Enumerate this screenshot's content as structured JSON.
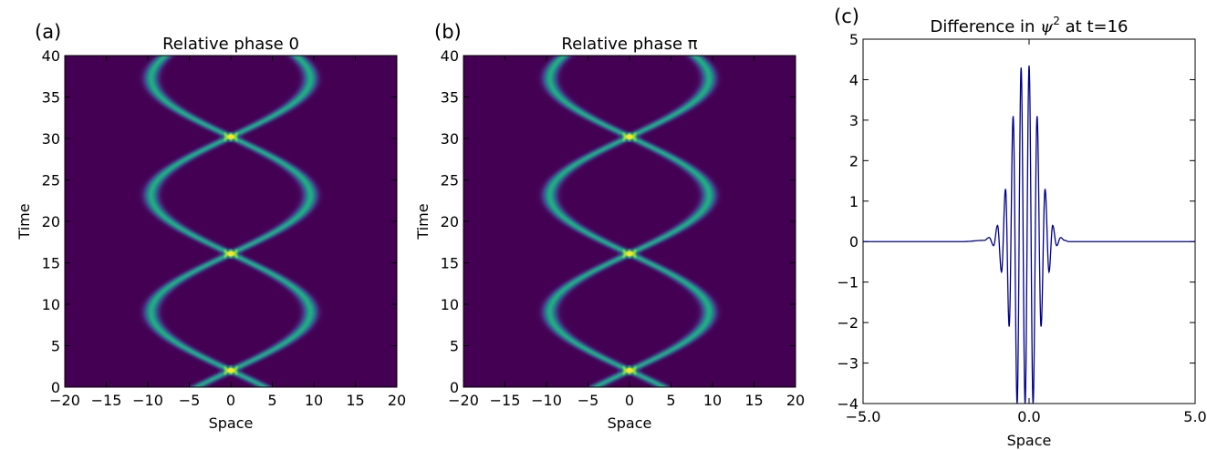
{
  "chart_data": [
    {
      "panel": "(a)",
      "type": "heatmap",
      "title": "Relative phase 0",
      "xlabel": "Space",
      "ylabel": "Time",
      "xlim": [
        -20,
        20
      ],
      "ylim": [
        0,
        40
      ],
      "xticks": [
        "−20",
        "−15",
        "−10",
        "−5",
        "0",
        "5",
        "10",
        "15",
        "20"
      ],
      "yticks": [
        "0",
        "5",
        "10",
        "15",
        "20",
        "25",
        "30",
        "35",
        "40"
      ],
      "colormap": "viridis",
      "background_color": "#440154",
      "trajectory": {
        "amplitude": 9.6,
        "period": 14.1,
        "collision_times": [
          2.0,
          16.1,
          30.2
        ]
      }
    },
    {
      "panel": "(b)",
      "type": "heatmap",
      "title": "Relative phase π",
      "xlabel": "Space",
      "ylabel": "Time",
      "xlim": [
        -20,
        20
      ],
      "ylim": [
        0,
        40
      ],
      "xticks": [
        "−20",
        "−15",
        "−10",
        "−5",
        "0",
        "5",
        "10",
        "15",
        "20"
      ],
      "yticks": [
        "0",
        "5",
        "10",
        "15",
        "20",
        "25",
        "30",
        "35",
        "40"
      ],
      "colormap": "viridis",
      "background_color": "#440154",
      "trajectory": {
        "amplitude": 9.6,
        "period": 14.1,
        "collision_times": [
          2.0,
          16.1,
          30.2
        ]
      }
    },
    {
      "panel": "(c)",
      "type": "line",
      "title_prefix": "Difference in ",
      "title_symbol": "ψ",
      "title_superscript": "2",
      "title_suffix": " at t=16",
      "xlabel": "Space",
      "ylabel": "",
      "xlim": [
        -5.0,
        5.0
      ],
      "ylim": [
        -4,
        5
      ],
      "xticks": [
        "−5.0",
        "0.0",
        "5.0"
      ],
      "xtick_values": [
        -5,
        0,
        5
      ],
      "yticks": [
        "−4",
        "−3",
        "−2",
        "−1",
        "0",
        "1",
        "2",
        "3",
        "4",
        "5"
      ],
      "ytick_values": [
        -4,
        -3,
        -2,
        -1,
        0,
        1,
        2,
        3,
        4,
        5
      ],
      "line_color": "#00008b",
      "series": [
        {
          "x": [
            -2.0,
            -1.35,
            -1.2,
            -1.07,
            -0.95,
            -0.83,
            -0.71,
            -0.6,
            -0.48,
            -0.36,
            -0.24,
            -0.12,
            0.0,
            0.12,
            0.24,
            0.36,
            0.48,
            0.6,
            0.71,
            0.83,
            0.95,
            1.07,
            1.2,
            1.35,
            2.0
          ],
          "y": [
            0.0,
            0.03,
            0.1,
            -0.1,
            0.4,
            -0.75,
            1.3,
            -2.1,
            3.1,
            -4.0,
            4.3,
            -4.0,
            4.35,
            -4.0,
            3.1,
            -2.1,
            1.3,
            -0.75,
            0.4,
            -0.1,
            0.1,
            0.03,
            0.0,
            0.0,
            0.0
          ]
        }
      ]
    }
  ]
}
